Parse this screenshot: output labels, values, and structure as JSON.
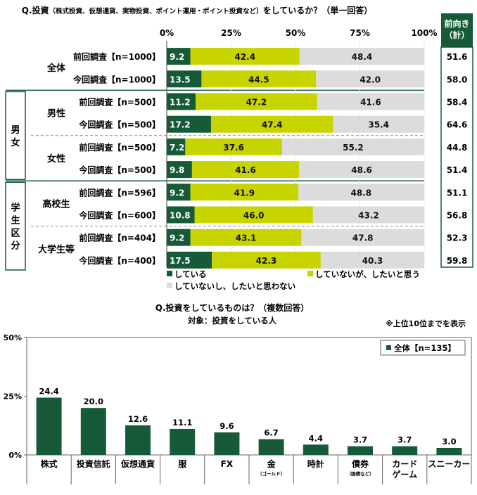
{
  "chart_data": [
    {
      "type": "bar",
      "stacked": true,
      "orientation": "horizontal",
      "title": "Q.投資（株式投資、仮想通貨、実物投資、ポイント運用・ポイント投資など）をしているか？（単一回答）",
      "title_main": "Q.投資",
      "title_detail": "（株式投資、仮想通貨、実物投資、ポイント運用・ポイント投資など）",
      "title_tail": "をしているか？（単一回答）",
      "xlim": [
        0,
        100
      ],
      "x_ticks": [
        "0%",
        "25%",
        "50%",
        "75%",
        "100%"
      ],
      "total_header": "前向き（計）",
      "total_header_lines": [
        "前向き",
        "（計）"
      ],
      "series": [
        {
          "name": "している",
          "color": "#175a3a"
        },
        {
          "name": "していないが、したいと思う",
          "color": "#c8d400"
        },
        {
          "name": "していないし、したいと思わない",
          "color": "#dcdcdc"
        }
      ],
      "groups": [
        {
          "label": "",
          "label_lines": [],
          "subgroups": [
            {
              "label": "全体",
              "rows": [
                {
                  "label": "前回調査【n=1000】",
                  "values": [
                    9.2,
                    42.4,
                    48.4
                  ],
                  "total": "51.6"
                },
                {
                  "label": "今回調査【n=1000】",
                  "values": [
                    13.5,
                    44.5,
                    42.0
                  ],
                  "total": "58.0"
                }
              ]
            }
          ]
        },
        {
          "label": "男女",
          "label_lines": [
            "男",
            "女"
          ],
          "subgroups": [
            {
              "label": "男性",
              "rows": [
                {
                  "label": "前回調査【n=500】",
                  "values": [
                    11.2,
                    47.2,
                    41.6
                  ],
                  "total": "58.4"
                },
                {
                  "label": "今回調査【n=500】",
                  "values": [
                    17.2,
                    47.4,
                    35.4
                  ],
                  "total": "64.6"
                }
              ]
            },
            {
              "label": "女性",
              "rows": [
                {
                  "label": "前回調査【n=500】",
                  "values": [
                    7.2,
                    37.6,
                    55.2
                  ],
                  "total": "44.8"
                },
                {
                  "label": "今回調査【n=500】",
                  "values": [
                    9.8,
                    41.6,
                    48.6
                  ],
                  "total": "51.4"
                }
              ]
            }
          ]
        },
        {
          "label": "学生区分",
          "label_lines": [
            "学",
            "生",
            "区",
            "分"
          ],
          "subgroups": [
            {
              "label": "高校生",
              "rows": [
                {
                  "label": "前回調査【n=596】",
                  "values": [
                    9.2,
                    41.9,
                    48.8
                  ],
                  "total": "51.1"
                },
                {
                  "label": "今回調査【n=600】",
                  "values": [
                    10.8,
                    46.0,
                    43.2
                  ],
                  "total": "56.8"
                }
              ]
            },
            {
              "label": "大学生等",
              "rows": [
                {
                  "label": "前回調査【n=404】",
                  "values": [
                    9.2,
                    43.1,
                    47.8
                  ],
                  "total": "52.3"
                },
                {
                  "label": "今回調査【n=400】",
                  "values": [
                    17.5,
                    42.3,
                    40.3
                  ],
                  "total": "59.8"
                }
              ]
            }
          ]
        }
      ],
      "legend_position": "bottom"
    },
    {
      "type": "bar",
      "title": "Q.投資をしているものは？（複数回答）",
      "subtitle": "対象：投資をしている人",
      "note": "※上位10位までを表示",
      "categories": [
        "株式",
        "投資信託",
        "仮想通貨",
        "服",
        "FX",
        "金",
        "時計",
        "債券",
        "カードゲーム",
        "スニーカー"
      ],
      "category_lines": [
        [
          "株式"
        ],
        [
          "投資信託"
        ],
        [
          "仮想通貨"
        ],
        [
          "服"
        ],
        [
          "FX"
        ],
        [
          "金"
        ],
        [
          "時計"
        ],
        [
          "債券"
        ],
        [
          "カード",
          "ゲーム"
        ],
        [
          "スニーカー"
        ]
      ],
      "category_notes": [
        "",
        "",
        "",
        "",
        "",
        "（ゴールド）",
        "",
        "（国債など）",
        "",
        ""
      ],
      "series": [
        {
          "name": "全体【n=135】",
          "color": "#175a3a",
          "values": [
            24.4,
            20.0,
            12.6,
            11.1,
            9.6,
            6.7,
            4.4,
            3.7,
            3.7,
            3.0
          ],
          "labels": [
            "24.4",
            "20.0",
            "12.6",
            "11.1",
            "9.6",
            "6.7",
            "4.4",
            "3.7",
            "3.7",
            "3.0"
          ]
        }
      ],
      "ylim": [
        0,
        50
      ],
      "y_ticks": [
        "0%",
        "25%",
        "50%"
      ],
      "legend_position": "top-right"
    }
  ]
}
